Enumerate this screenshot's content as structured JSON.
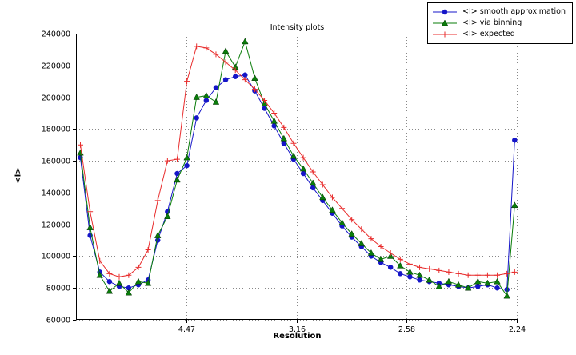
{
  "chart_data": {
    "type": "line",
    "title": "Intensity plots",
    "xlabel": "Resolution",
    "ylabel": "<I>",
    "grid": "dotted",
    "legend_position": "upper right outside-top",
    "xlim": [
      0,
      0.2007
    ],
    "ylim": [
      60000,
      240000
    ],
    "x_axis_note": "reciprocal resolution axis (1/d^2), labels shown as d-spacing",
    "xticks": {
      "positions": [
        0.05,
        0.1,
        0.15,
        0.2
      ],
      "labels": [
        "4.47",
        "3.16",
        "2.58",
        "2.24"
      ]
    },
    "yticks": [
      60000,
      80000,
      100000,
      120000,
      140000,
      160000,
      180000,
      200000,
      220000,
      240000
    ],
    "x": [
      0.002,
      0.0064,
      0.0108,
      0.0152,
      0.0196,
      0.0239,
      0.0283,
      0.0327,
      0.0371,
      0.0415,
      0.0459,
      0.0503,
      0.0547,
      0.0591,
      0.0635,
      0.0679,
      0.0723,
      0.0767,
      0.0811,
      0.0855,
      0.0899,
      0.0943,
      0.0987,
      0.1031,
      0.1075,
      0.1119,
      0.1163,
      0.1207,
      0.1251,
      0.1295,
      0.1339,
      0.1383,
      0.1427,
      0.1471,
      0.1515,
      0.1559,
      0.1603,
      0.1647,
      0.1691,
      0.1735,
      0.1779,
      0.1823,
      0.1867,
      0.1911,
      0.1955,
      0.199
    ],
    "series": [
      {
        "name": "<I> smooth approximation",
        "color": "#1515c8",
        "marker": "circle",
        "values": [
          162000,
          113000,
          90000,
          84000,
          81000,
          80000,
          82000,
          85000,
          110000,
          128000,
          152000,
          157000,
          187000,
          198000,
          206000,
          211000,
          213000,
          214000,
          204000,
          193000,
          182000,
          171000,
          161000,
          152000,
          143000,
          135000,
          127000,
          119000,
          112000,
          106000,
          100000,
          96000,
          93000,
          89000,
          87000,
          85000,
          84000,
          83000,
          82000,
          81000,
          80000,
          81000,
          82000,
          80000,
          79000,
          173000
        ]
      },
      {
        "name": "<I> via binning",
        "color": "#0a7d0a",
        "marker": "triangle",
        "values": [
          165000,
          118000,
          88000,
          78000,
          83000,
          77000,
          84000,
          83000,
          113000,
          125000,
          148000,
          162000,
          200000,
          201000,
          197000,
          229000,
          219000,
          235000,
          212000,
          196000,
          185000,
          174000,
          163000,
          155000,
          146000,
          137000,
          129000,
          121000,
          114000,
          108000,
          102000,
          98000,
          100000,
          94000,
          90000,
          88000,
          85000,
          81000,
          84000,
          82000,
          80000,
          84000,
          83000,
          84000,
          75000,
          132000
        ]
      },
      {
        "name": "<I> expected",
        "color": "#e82c2c",
        "marker": "plus",
        "values": [
          170000,
          128000,
          97000,
          89000,
          87000,
          88000,
          93000,
          104000,
          135000,
          160000,
          161000,
          210000,
          232000,
          231000,
          227000,
          222000,
          217000,
          211000,
          205000,
          198000,
          190000,
          181000,
          171000,
          162000,
          153000,
          145000,
          137000,
          130000,
          123000,
          117000,
          111000,
          106000,
          102000,
          98000,
          95000,
          93000,
          92000,
          91000,
          90000,
          89000,
          88000,
          88000,
          88000,
          88000,
          89000,
          90000
        ]
      }
    ]
  }
}
